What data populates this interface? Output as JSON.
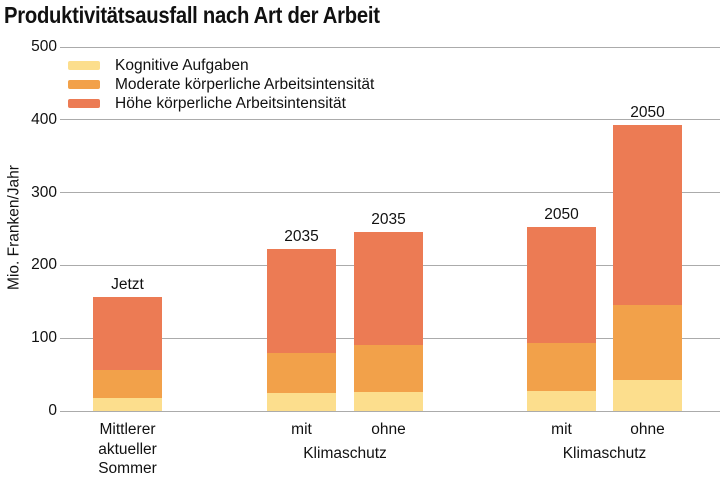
{
  "title": "Produktivitätsausfall nach Art der Arbeit",
  "colors": {
    "kognitive": "#FCDE8D",
    "moderate": "#F2A14A",
    "hohe": "#EC7B54",
    "gridline": "#ABABAB",
    "text": "#111111"
  },
  "legend": [
    {
      "label": "Kognitive Aufgaben",
      "color": "#FCDE8D"
    },
    {
      "label": "Moderate körperliche Arbeitsintensität",
      "color": "#F2A14A"
    },
    {
      "label": "Höhe körperliche Arbeitsintensität",
      "color": "#EC7B54"
    }
  ],
  "chart_data": {
    "type": "bar",
    "stacked": true,
    "title": "Produktivitätsausfall nach Art der Arbeit",
    "ylabel": "Mio. Franken/Jahr",
    "xlabel": "",
    "ylim": [
      0,
      500
    ],
    "yticks": [
      0,
      100,
      200,
      300,
      400,
      500
    ],
    "grid": true,
    "legend_position": "top-left",
    "categories": [
      "Mittlerer aktueller Sommer",
      "2035 mit Klimaschutz",
      "2035 ohne Klimaschutz",
      "2050 mit Klimaschutz",
      "2050 ohne Klimaschutz"
    ],
    "series": [
      {
        "name": "Kognitive Aufgaben",
        "color": "#FCDE8D",
        "values": [
          18,
          25,
          26,
          27,
          42
        ]
      },
      {
        "name": "Moderate körperliche Arbeitsintensität",
        "color": "#F2A14A",
        "values": [
          38,
          55,
          64,
          66,
          103
        ]
      },
      {
        "name": "Höhe körperliche Arbeitsintensität",
        "color": "#EC7B54",
        "values": [
          100,
          142,
          156,
          160,
          248
        ]
      }
    ],
    "totals": [
      156,
      222,
      246,
      253,
      393
    ],
    "bar_top_labels": [
      "Jetzt",
      "2035",
      "2035",
      "2050",
      "2050"
    ],
    "bar_x_labels": [
      [
        "Mittlerer",
        "aktueller",
        "Sommer"
      ],
      [
        "mit"
      ],
      [
        "ohne"
      ],
      [
        "mit"
      ],
      [
        "ohne"
      ]
    ],
    "group_labels": [
      {
        "label": "Klimaschutz",
        "bar_indexes": [
          1,
          2
        ]
      },
      {
        "label": "Klimaschutz",
        "bar_indexes": [
          3,
          4
        ]
      }
    ]
  }
}
